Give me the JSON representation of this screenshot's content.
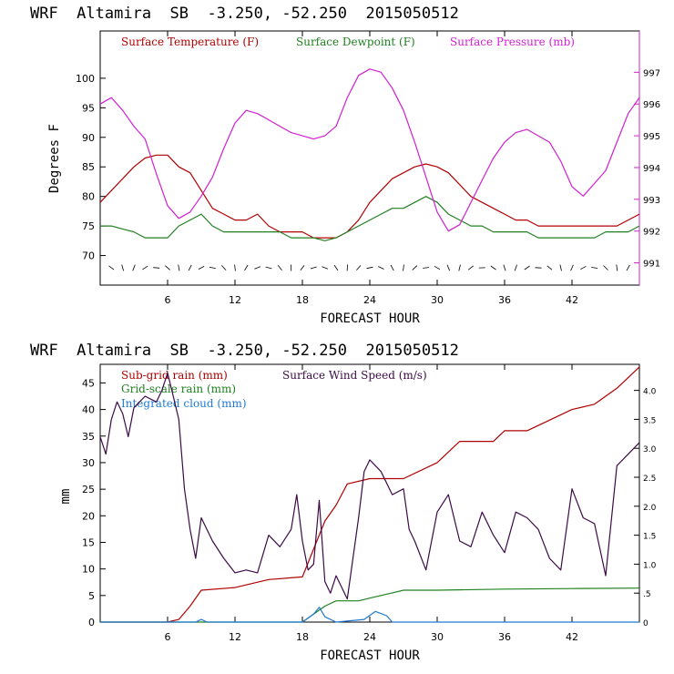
{
  "chart_data": [
    {
      "type": "line",
      "header": "WRF  Altamira  SB  -3.250, -52.250  2015050512",
      "xlabel": "FORECAST HOUR",
      "ylabel": "Degrees F",
      "xticks": [
        "6",
        "12",
        "18",
        "24",
        "30",
        "36",
        "42"
      ],
      "yticks_left": [
        "70",
        "75",
        "80",
        "85",
        "90",
        "95",
        "100"
      ],
      "yticks_right": [
        "991",
        "992",
        "993",
        "994",
        "995",
        "996",
        "997"
      ],
      "ylim": [
        65,
        108
      ],
      "ylim_right": [
        990.3,
        998.3
      ],
      "xlim": [
        0,
        48
      ],
      "legend": [
        {
          "label": "Surface Temperature (F)",
          "color": "#b00000"
        },
        {
          "label": "Surface Dewpoint (F)",
          "color": "#208020"
        },
        {
          "label": "Surface Pressure (mb)",
          "color": "#d020d0"
        }
      ],
      "series": [
        {
          "name": "Surface Temperature (F)",
          "color": "#b00000",
          "x": [
            0,
            1,
            2,
            3,
            4,
            5,
            6,
            7,
            8,
            9,
            10,
            11,
            12,
            13,
            14,
            15,
            16,
            17,
            18,
            19,
            20,
            21,
            22,
            23,
            24,
            25,
            26,
            27,
            28,
            29,
            30,
            31,
            32,
            33,
            34,
            35,
            36,
            37,
            38,
            39,
            40,
            41,
            42,
            43,
            44,
            45,
            46,
            47,
            48
          ],
          "y": [
            79,
            81,
            83,
            85,
            86.5,
            87,
            87,
            85,
            84,
            81,
            78,
            77,
            76,
            76,
            77,
            75,
            74,
            74,
            74,
            73,
            73,
            73,
            74,
            76,
            79,
            81,
            83,
            84,
            85,
            85.5,
            85,
            84,
            82,
            80,
            79,
            78,
            77,
            76,
            76,
            75,
            75,
            75,
            75,
            75,
            75,
            75,
            75,
            76,
            77
          ]
        },
        {
          "name": "Surface Dewpoint (F)",
          "color": "#208020",
          "x": [
            0,
            1,
            2,
            3,
            4,
            5,
            6,
            7,
            8,
            9,
            10,
            11,
            12,
            13,
            14,
            15,
            16,
            17,
            18,
            19,
            20,
            21,
            22,
            23,
            24,
            25,
            26,
            27,
            28,
            29,
            30,
            31,
            32,
            33,
            34,
            35,
            36,
            37,
            38,
            39,
            40,
            41,
            42,
            43,
            44,
            45,
            46,
            47,
            48
          ],
          "y": [
            75,
            75,
            74.5,
            74,
            73,
            73,
            73,
            75,
            76,
            77,
            75,
            74,
            74,
            74,
            74,
            74,
            74,
            73,
            73,
            73,
            72.5,
            73,
            74,
            75,
            76,
            77,
            78,
            78,
            79,
            80,
            79,
            77,
            76,
            75,
            75,
            74,
            74,
            74,
            74,
            73,
            73,
            73,
            73,
            73,
            73,
            74,
            74,
            74,
            75
          ]
        },
        {
          "name": "Surface Pressure (mb)",
          "color": "#d020d0",
          "axis": "right",
          "x": [
            0,
            1,
            2,
            3,
            4,
            5,
            6,
            7,
            8,
            9,
            10,
            11,
            12,
            13,
            14,
            15,
            16,
            17,
            18,
            19,
            20,
            21,
            22,
            23,
            24,
            25,
            26,
            27,
            28,
            29,
            30,
            31,
            32,
            33,
            34,
            35,
            36,
            37,
            38,
            39,
            40,
            41,
            42,
            43,
            44,
            45,
            46,
            47,
            48
          ],
          "y": [
            996,
            996.2,
            995.8,
            995.3,
            994.9,
            993.8,
            992.8,
            992.4,
            992.6,
            993.1,
            993.7,
            994.6,
            995.4,
            995.8,
            995.7,
            995.5,
            995.3,
            995.1,
            995,
            994.9,
            995,
            995.3,
            996.2,
            996.9,
            997.1,
            997.0,
            996.5,
            995.8,
            994.8,
            993.7,
            992.6,
            992.0,
            992.2,
            992.9,
            993.6,
            994.3,
            994.8,
            995.1,
            995.2,
            995.0,
            994.8,
            994.2,
            993.4,
            993.1,
            993.5,
            993.9,
            994.8,
            995.7,
            996.2
          ]
        }
      ]
    },
    {
      "type": "line",
      "header": "WRF  Altamira  SB  -3.250, -52.250  2015050512",
      "xlabel": "FORECAST HOUR",
      "ylabel": "mm",
      "xticks": [
        "6",
        "12",
        "18",
        "24",
        "30",
        "36",
        "42"
      ],
      "yticks_left": [
        "0",
        "5",
        "10",
        "15",
        "20",
        "25",
        "30",
        "35",
        "40",
        "45"
      ],
      "yticks_right": [
        "0",
        ".5",
        "1.0",
        "1.5",
        "2.0",
        "2.5",
        "3.0",
        "3.5",
        "4.0"
      ],
      "ylim": [
        0,
        48.5
      ],
      "ylim_right": [
        0,
        4.45
      ],
      "xlim": [
        0,
        48
      ],
      "legend": [
        {
          "label": "Sub-grid rain (mm)",
          "color": "#b00000"
        },
        {
          "label": "Surface Wind Speed (m/s)",
          "color": "#3c0a46"
        },
        {
          "label": "Grid-scale rain (mm)",
          "color": "#208020"
        },
        {
          "label": "Integrated cloud (mm)",
          "color": "#1e7ad2"
        }
      ],
      "series": [
        {
          "name": "Sub-grid rain (mm)",
          "color": "#b00000",
          "x": [
            0,
            6,
            7,
            8,
            9,
            12,
            15,
            18,
            20,
            21,
            22,
            24,
            27,
            30,
            32,
            35,
            36,
            38,
            40,
            42,
            44,
            46,
            48
          ],
          "y": [
            0,
            0,
            0.5,
            3,
            6,
            6.5,
            8,
            8.5,
            19,
            22,
            26,
            27,
            27,
            30,
            34,
            34,
            36,
            36,
            38,
            40,
            41,
            44,
            48
          ]
        },
        {
          "name": "Grid-scale rain (mm)",
          "color": "#208020",
          "x": [
            0,
            18,
            19,
            20,
            21,
            23,
            24,
            25,
            26,
            27,
            30,
            36,
            42,
            48
          ],
          "y": [
            0,
            0,
            1.5,
            3,
            4,
            4,
            4.5,
            5,
            5.5,
            6,
            6,
            6.2,
            6.3,
            6.4
          ]
        },
        {
          "name": "Integrated cloud (mm)",
          "color": "#1e7ad2",
          "x": [
            0,
            8.5,
            9,
            9.5,
            18,
            19,
            19.5,
            20,
            21,
            23.5,
            24.5,
            25.5,
            26,
            48
          ],
          "y": [
            0,
            0,
            0.5,
            0,
            0,
            1.5,
            2.8,
            1,
            0,
            0.5,
            2,
            1.2,
            0,
            0
          ]
        },
        {
          "name": "Surface Wind Speed (m/s)",
          "color": "#3c0a46",
          "axis": "right",
          "x": [
            0,
            0.5,
            1,
            1.5,
            2,
            2.5,
            3,
            4,
            5,
            5.5,
            6,
            6.5,
            7,
            7.5,
            8,
            8.5,
            9,
            10,
            11,
            12,
            13,
            14,
            15,
            16,
            17,
            17.5,
            18,
            18.5,
            19,
            19.5,
            20,
            20.5,
            21,
            22,
            23,
            23.5,
            24,
            25,
            26,
            27,
            27.5,
            28,
            29,
            30,
            31,
            32,
            33,
            34,
            35,
            36,
            37,
            38,
            39,
            40,
            41,
            42,
            43,
            44,
            45,
            46,
            47,
            48
          ],
          "y": [
            3.2,
            2.9,
            3.5,
            3.8,
            3.6,
            3.2,
            3.7,
            3.9,
            3.8,
            4.0,
            4.3,
            3.9,
            3.5,
            2.3,
            1.6,
            1.1,
            1.8,
            1.4,
            1.1,
            0.85,
            0.9,
            0.85,
            1.5,
            1.3,
            1.6,
            2.2,
            1.4,
            0.9,
            1.0,
            2.1,
            0.7,
            0.5,
            0.8,
            0.4,
            1.8,
            2.6,
            2.8,
            2.6,
            2.2,
            2.3,
            1.6,
            1.4,
            0.9,
            1.9,
            2.2,
            1.4,
            1.3,
            1.9,
            1.5,
            1.2,
            1.9,
            1.8,
            1.6,
            1.1,
            0.9,
            2.3,
            1.8,
            1.7,
            0.8,
            2.7,
            2.9,
            3.1
          ]
        }
      ]
    }
  ]
}
